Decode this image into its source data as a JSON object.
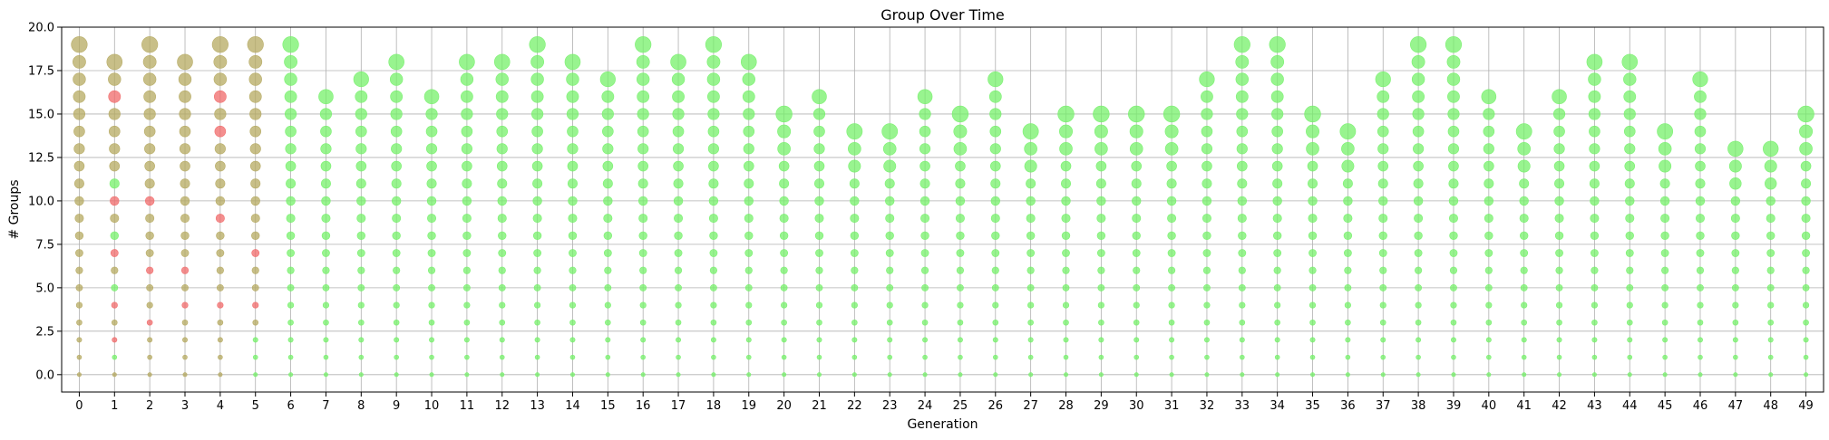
{
  "chart_data": {
    "type": "scatter",
    "title": "Group Over Time",
    "xlabel": "Generation",
    "ylabel": "# Groups",
    "xlim": [
      -0.5,
      49.5
    ],
    "ylim": [
      -1,
      20
    ],
    "x_ticks": [
      0,
      1,
      2,
      3,
      4,
      5,
      6,
      7,
      8,
      9,
      10,
      11,
      12,
      13,
      14,
      15,
      16,
      17,
      18,
      19,
      20,
      21,
      22,
      23,
      24,
      25,
      26,
      27,
      28,
      29,
      30,
      31,
      32,
      33,
      34,
      35,
      36,
      37,
      38,
      39,
      40,
      41,
      42,
      43,
      44,
      45,
      46,
      47,
      48,
      49
    ],
    "y_ticks": [
      0.0,
      2.5,
      5.0,
      7.5,
      10.0,
      12.5,
      15.0,
      17.5,
      20.0
    ],
    "y_tick_labels": [
      "0.0",
      "2.5",
      "5.0",
      "7.5",
      "10.0",
      "12.5",
      "15.0",
      "17.5",
      "20.0"
    ],
    "grid": true,
    "marker_encoding": "bubble size = group size; color from red (low fitness) to green (high fitness)",
    "colors": {
      "early_red": "#f06a6a",
      "olive": "#b5a960",
      "green": "#76f06a"
    },
    "generations": [
      {
        "x": 0,
        "max_group": 19,
        "color": "mixed"
      },
      {
        "x": 1,
        "max_group": 18,
        "color": "mixed"
      },
      {
        "x": 2,
        "max_group": 19,
        "color": "mixed"
      },
      {
        "x": 3,
        "max_group": 18,
        "color": "mixed"
      },
      {
        "x": 4,
        "max_group": 19,
        "color": "mixed"
      },
      {
        "x": 5,
        "max_group": 19,
        "color": "mixed"
      },
      {
        "x": 6,
        "max_group": 19,
        "color": "green"
      },
      {
        "x": 7,
        "max_group": 16,
        "color": "green"
      },
      {
        "x": 8,
        "max_group": 17,
        "color": "green"
      },
      {
        "x": 9,
        "max_group": 18,
        "color": "green"
      },
      {
        "x": 10,
        "max_group": 16,
        "color": "green"
      },
      {
        "x": 11,
        "max_group": 18,
        "color": "green"
      },
      {
        "x": 12,
        "max_group": 18,
        "color": "green"
      },
      {
        "x": 13,
        "max_group": 19,
        "color": "green"
      },
      {
        "x": 14,
        "max_group": 18,
        "color": "green"
      },
      {
        "x": 15,
        "max_group": 17,
        "color": "green"
      },
      {
        "x": 16,
        "max_group": 19,
        "color": "green"
      },
      {
        "x": 17,
        "max_group": 18,
        "color": "green"
      },
      {
        "x": 18,
        "max_group": 19,
        "color": "green"
      },
      {
        "x": 19,
        "max_group": 18,
        "color": "green"
      },
      {
        "x": 20,
        "max_group": 15,
        "color": "green"
      },
      {
        "x": 21,
        "max_group": 16,
        "color": "green"
      },
      {
        "x": 22,
        "max_group": 14,
        "color": "green"
      },
      {
        "x": 23,
        "max_group": 14,
        "color": "green"
      },
      {
        "x": 24,
        "max_group": 16,
        "color": "green"
      },
      {
        "x": 25,
        "max_group": 15,
        "color": "green"
      },
      {
        "x": 26,
        "max_group": 17,
        "color": "green"
      },
      {
        "x": 27,
        "max_group": 14,
        "color": "green"
      },
      {
        "x": 28,
        "max_group": 15,
        "color": "green"
      },
      {
        "x": 29,
        "max_group": 15,
        "color": "green"
      },
      {
        "x": 30,
        "max_group": 15,
        "color": "green"
      },
      {
        "x": 31,
        "max_group": 15,
        "color": "green"
      },
      {
        "x": 32,
        "max_group": 17,
        "color": "green"
      },
      {
        "x": 33,
        "max_group": 19,
        "color": "green"
      },
      {
        "x": 34,
        "max_group": 19,
        "color": "green"
      },
      {
        "x": 35,
        "max_group": 15,
        "color": "green"
      },
      {
        "x": 36,
        "max_group": 14,
        "color": "green"
      },
      {
        "x": 37,
        "max_group": 17,
        "color": "green"
      },
      {
        "x": 38,
        "max_group": 19,
        "color": "green"
      },
      {
        "x": 39,
        "max_group": 19,
        "color": "green"
      },
      {
        "x": 40,
        "max_group": 16,
        "color": "green"
      },
      {
        "x": 41,
        "max_group": 14,
        "color": "green"
      },
      {
        "x": 42,
        "max_group": 16,
        "color": "green"
      },
      {
        "x": 43,
        "max_group": 18,
        "color": "green"
      },
      {
        "x": 44,
        "max_group": 18,
        "color": "green"
      },
      {
        "x": 45,
        "max_group": 14,
        "color": "green"
      },
      {
        "x": 46,
        "max_group": 17,
        "color": "green"
      },
      {
        "x": 47,
        "max_group": 13,
        "color": "green"
      },
      {
        "x": 48,
        "max_group": 13,
        "color": "green"
      },
      {
        "x": 49,
        "max_group": 15,
        "color": "green"
      }
    ],
    "early_red_points": [
      {
        "x": 1,
        "y": 16
      },
      {
        "x": 1,
        "y": 10
      },
      {
        "x": 1,
        "y": 7
      },
      {
        "x": 1,
        "y": 4
      },
      {
        "x": 1,
        "y": 2
      },
      {
        "x": 2,
        "y": 10
      },
      {
        "x": 2,
        "y": 6
      },
      {
        "x": 2,
        "y": 3
      },
      {
        "x": 3,
        "y": 6
      },
      {
        "x": 3,
        "y": 4
      },
      {
        "x": 4,
        "y": 16
      },
      {
        "x": 4,
        "y": 14
      },
      {
        "x": 4,
        "y": 9
      },
      {
        "x": 4,
        "y": 4
      },
      {
        "x": 5,
        "y": 7
      },
      {
        "x": 5,
        "y": 4
      }
    ]
  }
}
